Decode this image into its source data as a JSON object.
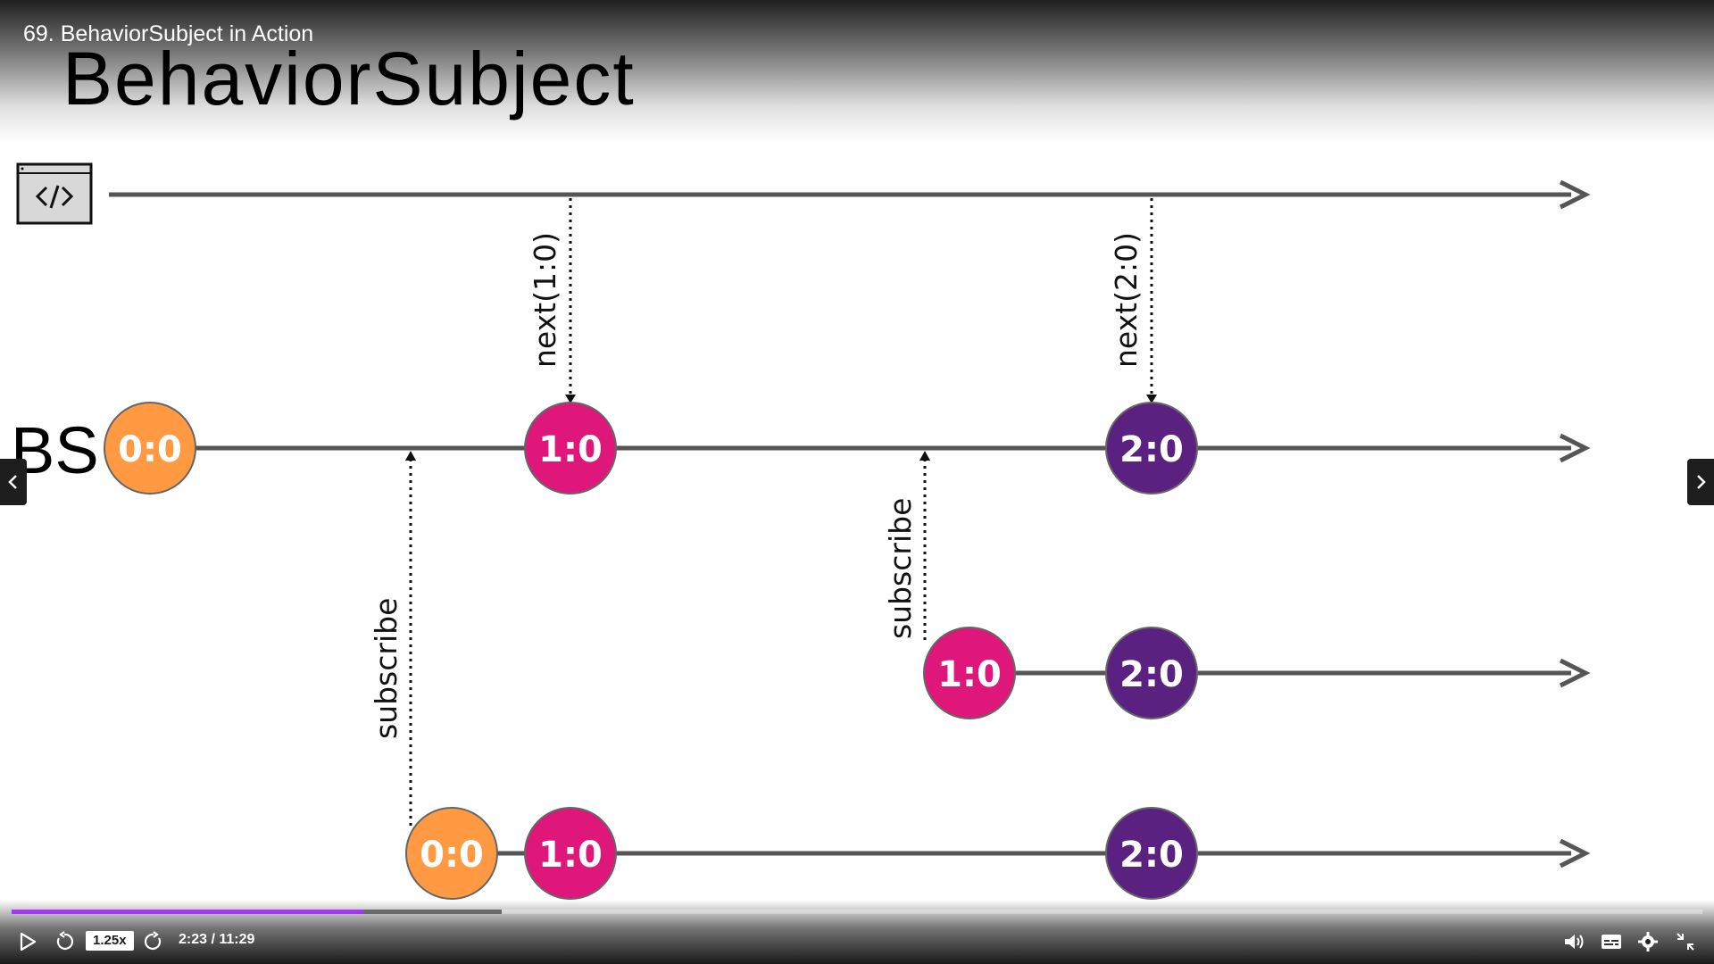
{
  "lecture": {
    "title": "69. BehaviorSubject in Action"
  },
  "slide": {
    "title": "BehaviorSubject",
    "source_label": "BS",
    "code_icon": "code-window-icon",
    "colors": {
      "orange": "#ff9a42",
      "pink": "#e0177a",
      "purple": "#5b2180",
      "line": "#555555"
    },
    "source_stream": {
      "markers": [
        {
          "label": "next(1:0)",
          "icon": "dotted-arrow-down"
        },
        {
          "label": "next(2:0)",
          "icon": "dotted-arrow-down"
        }
      ]
    },
    "bs_stream": {
      "values": [
        {
          "label": "0:0",
          "color": "orange"
        },
        {
          "label": "1:0",
          "color": "pink"
        },
        {
          "label": "2:0",
          "color": "purple"
        }
      ],
      "subscriptions": [
        {
          "label": "subscribe"
        },
        {
          "label": "subscribe"
        }
      ]
    },
    "subscriber_1": {
      "values": [
        {
          "label": "1:0",
          "color": "pink"
        },
        {
          "label": "2:0",
          "color": "purple"
        }
      ]
    },
    "subscriber_2": {
      "values": [
        {
          "label": "0:0",
          "color": "orange"
        },
        {
          "label": "1:0",
          "color": "pink"
        },
        {
          "label": "2:0",
          "color": "purple"
        }
      ]
    }
  },
  "nav": {
    "prev_icon": "chevron-left-icon",
    "next_icon": "chevron-right-icon"
  },
  "player": {
    "speed": "1.25x",
    "time": "2:23 / 11:29",
    "progress_fraction": 0.208,
    "buffered_fraction": 0.29,
    "icons": [
      "play-icon",
      "rewind-icon",
      "forward-icon",
      "volume-icon",
      "captions-icon",
      "settings-icon",
      "fullscreen-exit-icon"
    ]
  }
}
